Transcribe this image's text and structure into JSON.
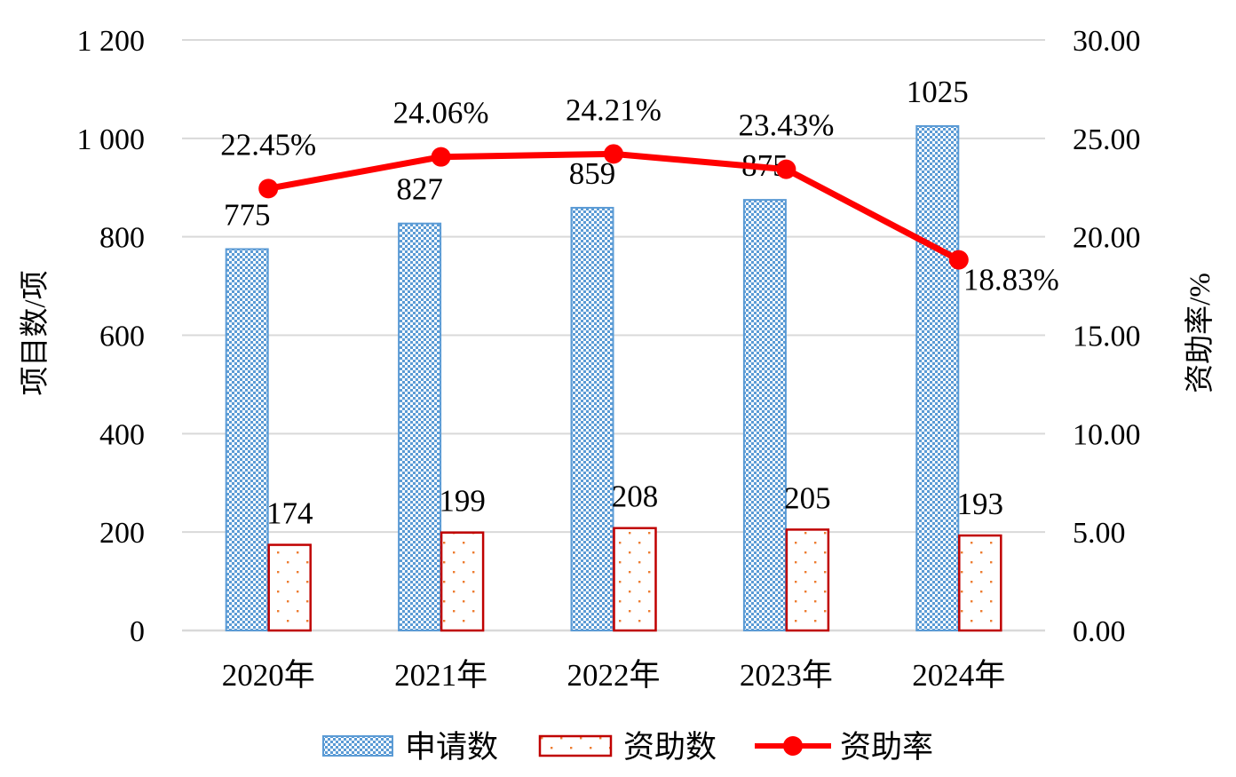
{
  "colors": {
    "applied_stroke": "#5b9bd5",
    "funded_stroke": "#c00000",
    "funded_dot": "#ed7d31",
    "rate_line": "#ff0000",
    "grid": "#d9d9d9"
  },
  "chart_data": {
    "type": "bar",
    "categories": [
      "2020年",
      "2021年",
      "2022年",
      "2023年",
      "2024年"
    ],
    "series": [
      {
        "name": "申请数",
        "kind": "bar",
        "axis": "left",
        "pattern": "checker",
        "values": [
          775,
          827,
          859,
          875,
          1025
        ]
      },
      {
        "name": "资助数",
        "kind": "bar",
        "axis": "left",
        "pattern": "dots",
        "values": [
          174,
          199,
          208,
          205,
          193
        ]
      },
      {
        "name": "资助率",
        "kind": "line",
        "axis": "right",
        "values": [
          22.45,
          24.06,
          24.21,
          23.43,
          18.83
        ]
      }
    ],
    "rate_labels": [
      "22.45%",
      "24.06%",
      "24.21%",
      "23.43%",
      "18.83%"
    ],
    "ylabel": "项目数/项",
    "y2label": "资助率/%",
    "ylim": [
      0,
      1200
    ],
    "y2lim": [
      0,
      30
    ],
    "yticks": [
      "0",
      "200",
      "400",
      "600",
      "800",
      "1 000",
      "1 200"
    ],
    "y2ticks": [
      "0.00",
      "5.00",
      "10.00",
      "15.00",
      "20.00",
      "25.00",
      "30.00"
    ],
    "grid": true,
    "legend_position": "bottom"
  }
}
